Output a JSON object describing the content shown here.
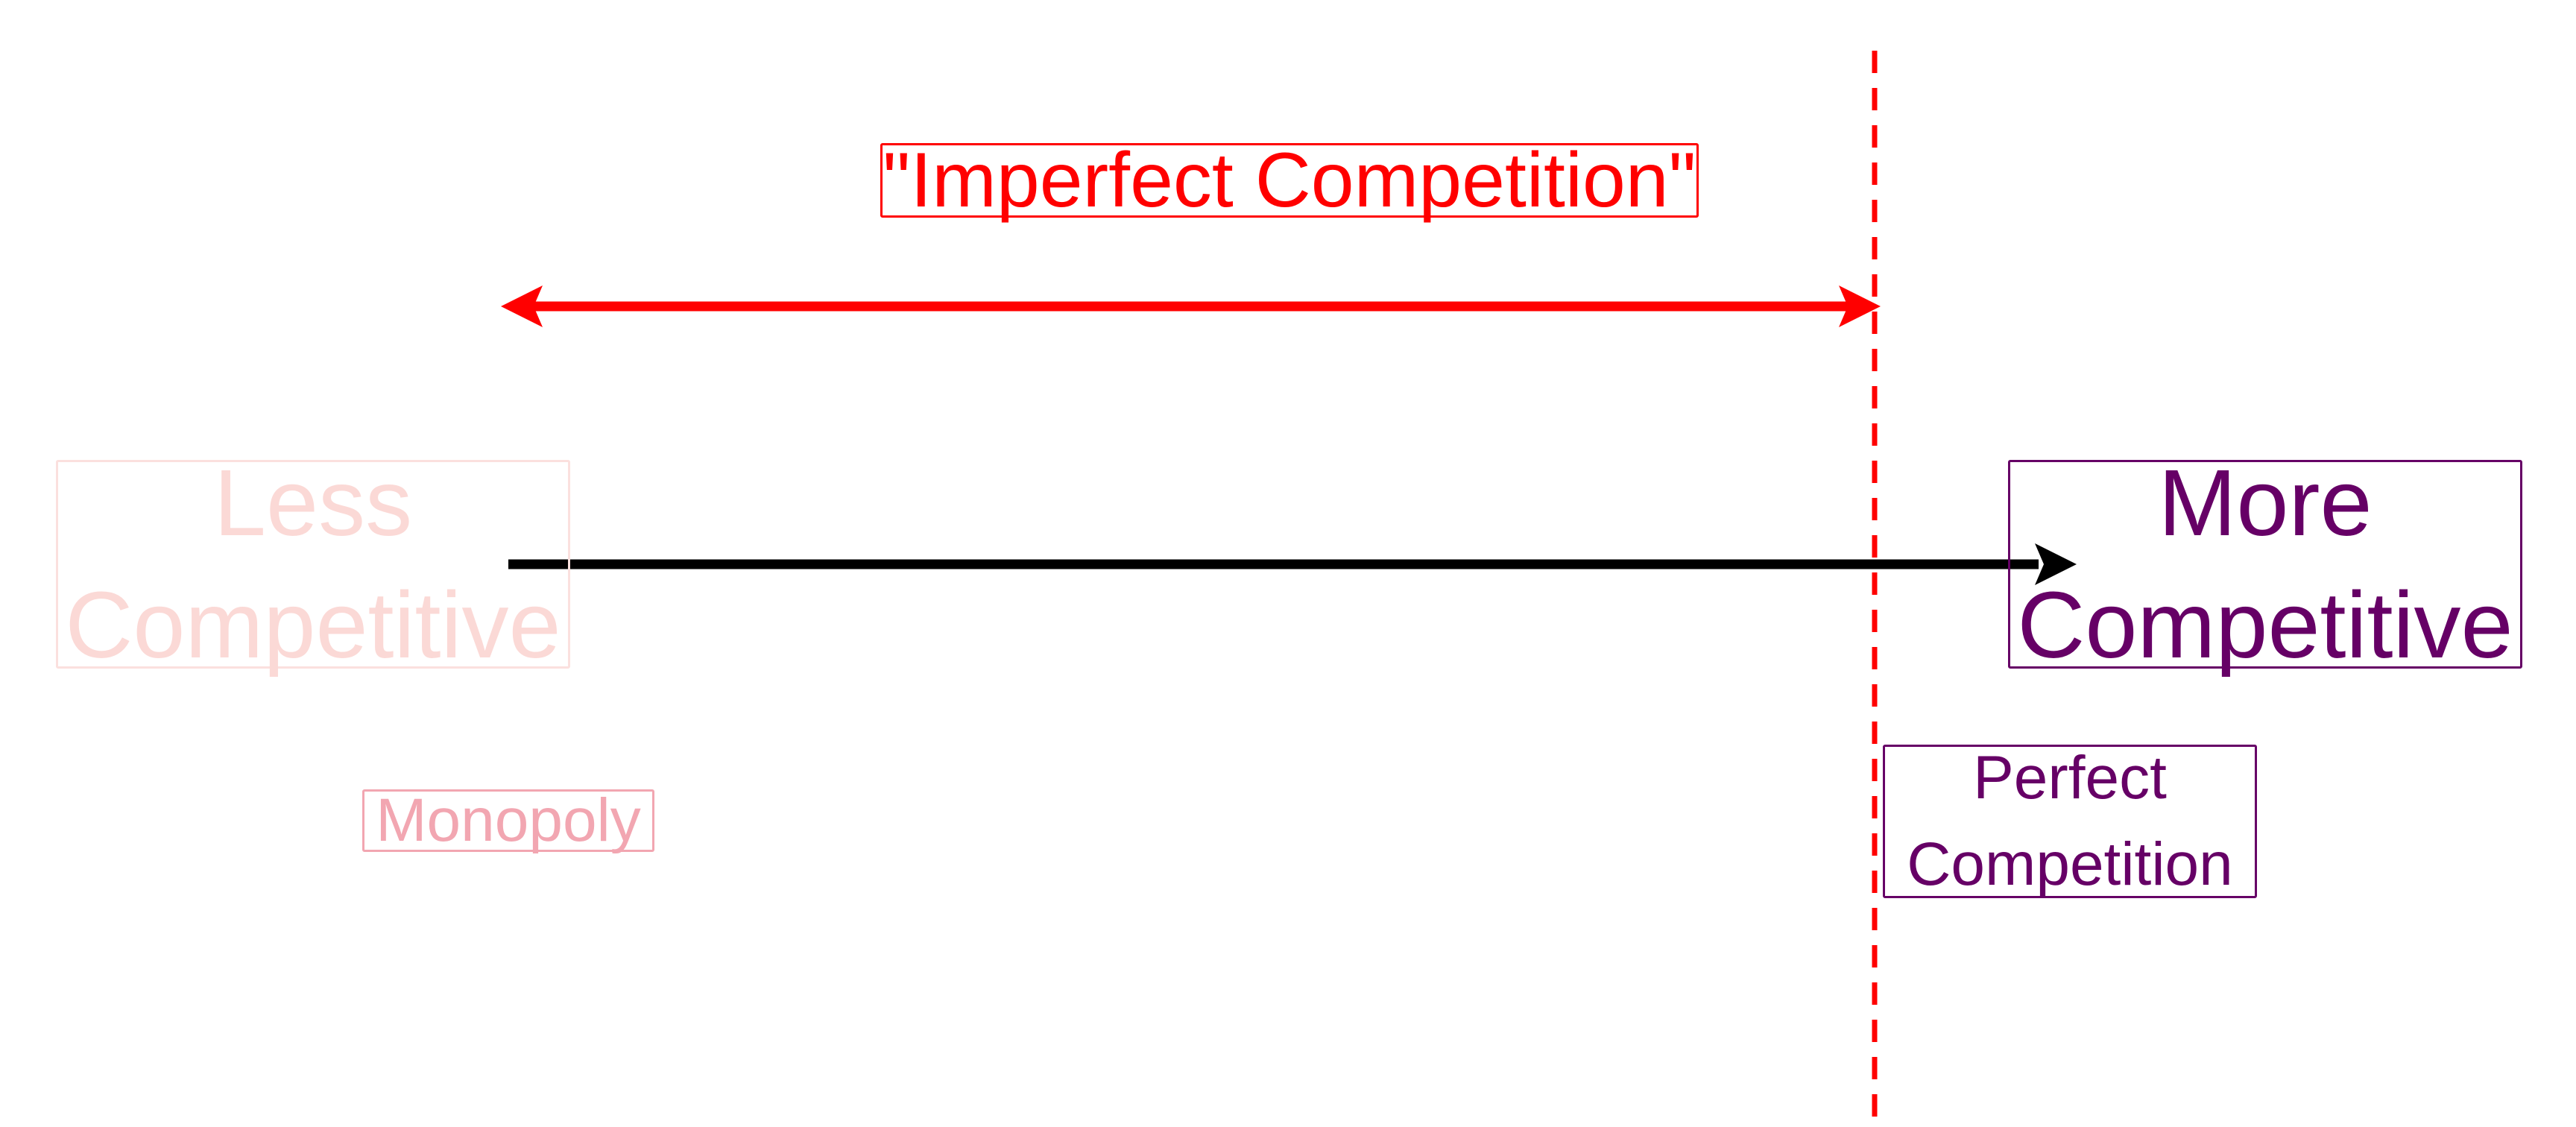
{
  "labels": {
    "imperfect_competition": "\"Imperfect Competition\"",
    "less_competitive_line1": "Less",
    "less_competitive_line2": "Competitive",
    "more_competitive_line1": "More",
    "more_competitive_line2": "Competitive",
    "monopoly": "Monopoly",
    "perfect_competition_line1": "Perfect",
    "perfect_competition_line2": "Competition"
  },
  "colors": {
    "imperfect": "#ff0000",
    "less": "#fbd9d6",
    "more": "#660066",
    "monopoly": "#f2a6b1",
    "main_arrow": "#000000"
  }
}
